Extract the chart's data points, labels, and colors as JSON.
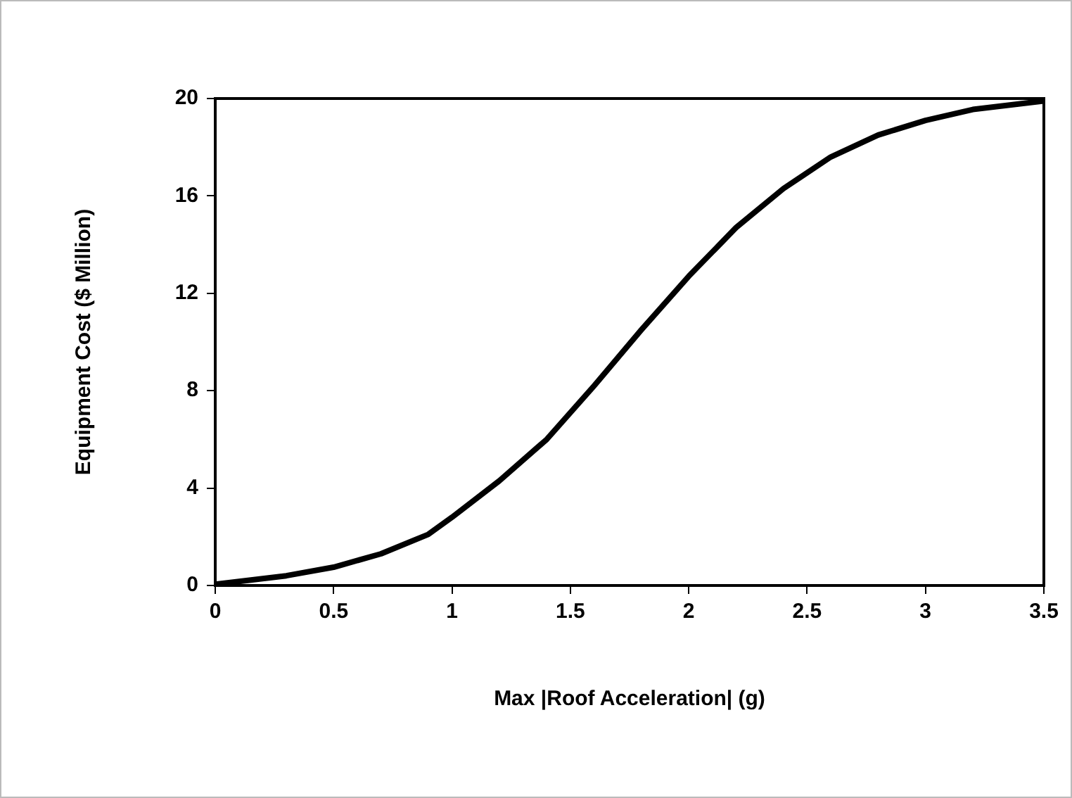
{
  "chart_data": {
    "type": "line",
    "xlabel": "Max |Roof Acceleration| (g)",
    "ylabel": "Equipment Cost ($ Million)",
    "x": [
      0,
      0.3,
      0.5,
      0.7,
      0.9,
      1.0,
      1.2,
      1.4,
      1.6,
      1.8,
      2.0,
      2.2,
      2.4,
      2.6,
      2.8,
      3.0,
      3.2,
      3.5
    ],
    "series": [
      {
        "color": "#000000",
        "values": [
          0.05,
          0.4,
          0.75,
          1.3,
          2.1,
          2.8,
          4.3,
          6.0,
          8.2,
          10.5,
          12.7,
          14.7,
          16.3,
          17.6,
          18.5,
          19.1,
          19.55,
          19.9
        ]
      }
    ],
    "xlim": [
      0,
      3.5
    ],
    "xticks": [
      0,
      0.5,
      1,
      1.5,
      2,
      2.5,
      3,
      3.5
    ],
    "ylim": [
      0,
      20
    ],
    "yticks": [
      0,
      4,
      8,
      12,
      16,
      20
    ],
    "grid": false,
    "legend": false,
    "marker": "none",
    "line_style": "solid"
  }
}
